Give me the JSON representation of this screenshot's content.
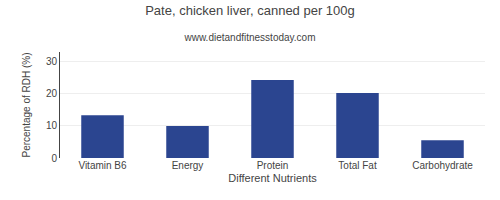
{
  "chart_data": {
    "type": "bar",
    "title": "Pate, chicken liver, canned per 100g",
    "subtitle": "www.dietandfitnesstoday.com",
    "xlabel": "Different Nutrients",
    "ylabel": "Percentage of RDH (%)",
    "categories": [
      "Vitamin B6",
      "Energy",
      "Protein",
      "Total Fat",
      "Carbohydrate"
    ],
    "values": [
      13.3,
      10.0,
      24.3,
      20.2,
      5.5
    ],
    "color": "#2b4590",
    "ylim": [
      0,
      33
    ],
    "yticks": [
      0,
      10,
      20,
      30
    ],
    "grid": true
  }
}
